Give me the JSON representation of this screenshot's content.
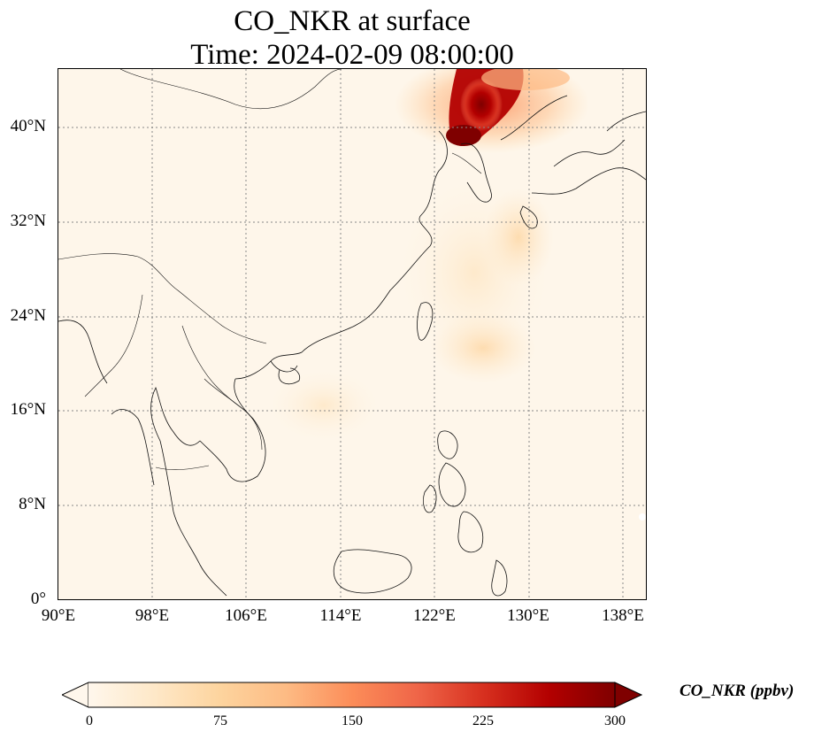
{
  "title": {
    "line1": "CO_NKR at surface",
    "line2": "Time: 2024-02-09 08:00:00"
  },
  "map": {
    "lon_range": [
      90,
      140
    ],
    "lat_range": [
      0,
      45
    ],
    "lon_ticks": [
      "90°E",
      "98°E",
      "106°E",
      "114°E",
      "122°E",
      "130°E",
      "138°E"
    ],
    "lat_ticks": [
      "0°",
      "8°N",
      "16°N",
      "24°N",
      "32°N",
      "40°N"
    ],
    "gridlines": true,
    "coastlines": true,
    "country_borders": true,
    "field_name": "CO_NKR",
    "high_concentration_region": "northern Korean Peninsula / Yellow Sea plume"
  },
  "colorbar": {
    "label": "CO_NKR (ppbv)",
    "min": 0,
    "max": 300,
    "ticks": [
      "0",
      "75",
      "150",
      "225",
      "300"
    ],
    "colormap": "OrRd",
    "extend": "both",
    "colors": [
      "#fff7ec",
      "#fee8c8",
      "#fdd49e",
      "#fdbb84",
      "#fc8d59",
      "#ef6548",
      "#d7301f",
      "#b30000",
      "#7f0000"
    ]
  }
}
